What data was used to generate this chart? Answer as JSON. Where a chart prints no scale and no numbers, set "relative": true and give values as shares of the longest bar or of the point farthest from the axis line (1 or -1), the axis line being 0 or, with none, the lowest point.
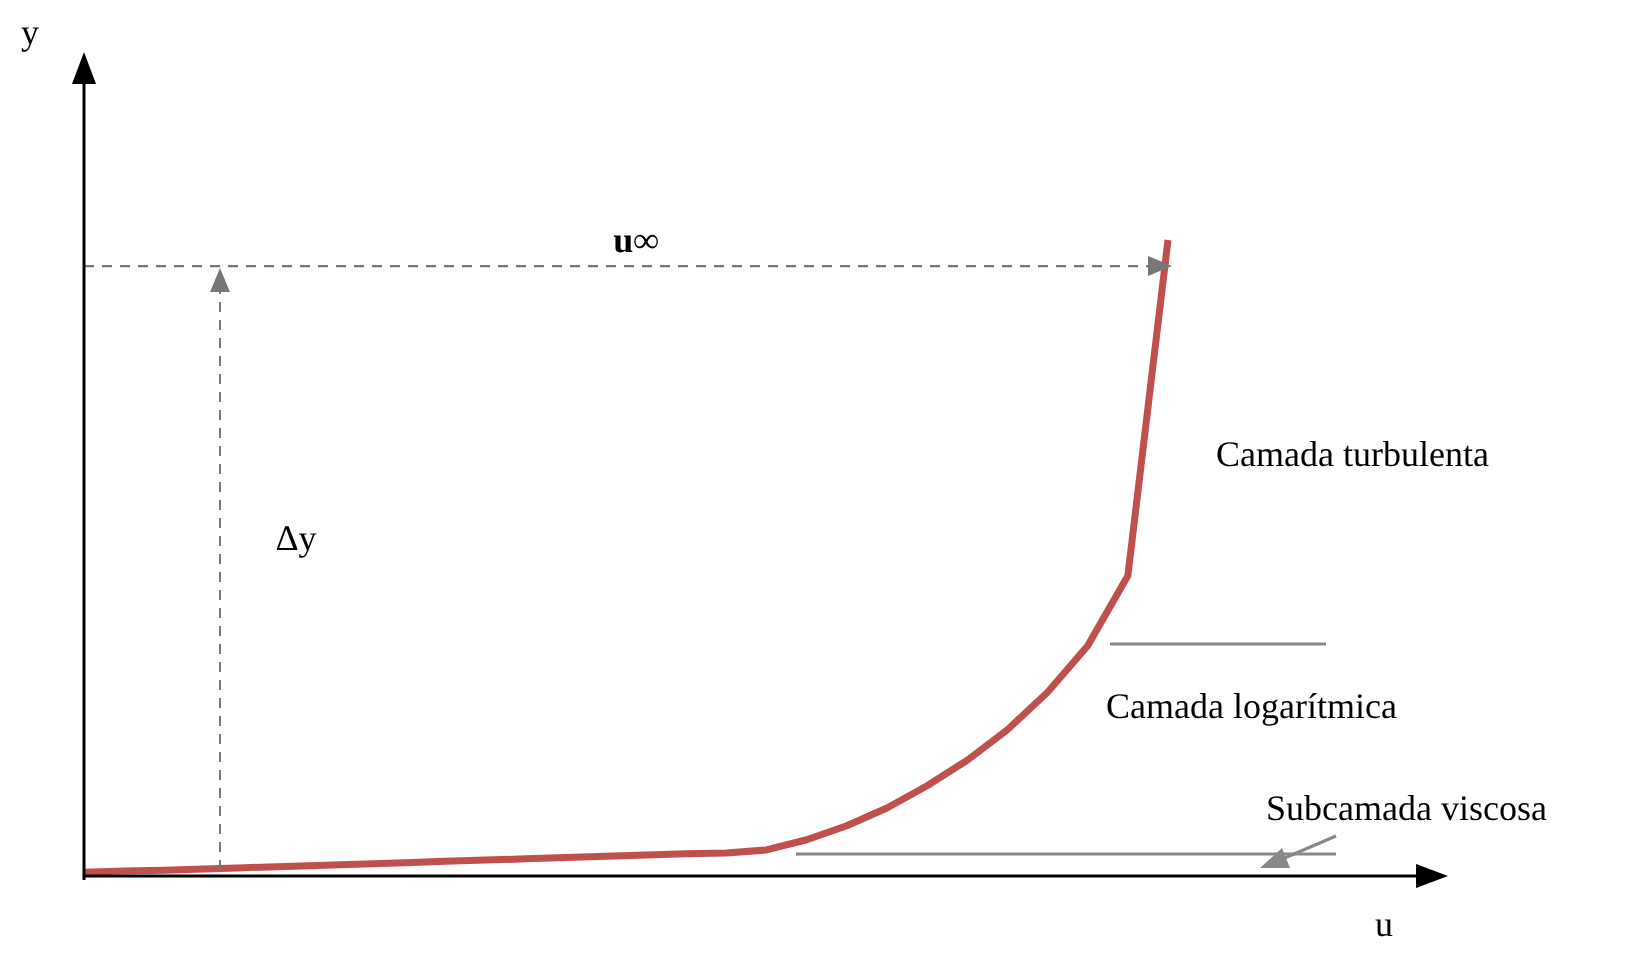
{
  "chart_data": {
    "type": "line",
    "relative": true,
    "ref_lines": [
      {
        "axis": "y",
        "value": 0.959,
        "label": "u∞",
        "color": "#777777",
        "line_style": "dashed"
      }
    ],
    "categories": [
      null,
      null,
      null,
      null,
      null,
      null,
      null,
      null,
      null,
      null,
      null,
      null,
      null,
      null,
      null,
      null,
      null,
      null,
      null,
      null,
      null,
      null,
      null,
      null,
      null,
      null,
      null,
      null
    ],
    "series": [
      {
        "color": "#c0504d",
        "values": [
          0.006,
          0.008,
          0.009,
          0.011,
          0.013,
          0.015,
          0.017,
          0.019,
          0.021,
          0.023,
          0.025,
          0.027,
          0.029,
          0.031,
          0.033,
          0.035,
          0.036,
          0.041,
          0.057,
          0.079,
          0.107,
          0.142,
          0.182,
          0.23,
          0.289,
          0.362,
          0.472,
          1
        ]
      }
    ],
    "annotations": [
      "Δy",
      "Camada turbulenta",
      "Camada logarítmica",
      "Subcamada viscosa",
      "y",
      "u"
    ],
    "marker": "none",
    "grid": false,
    "legend": false
  }
}
